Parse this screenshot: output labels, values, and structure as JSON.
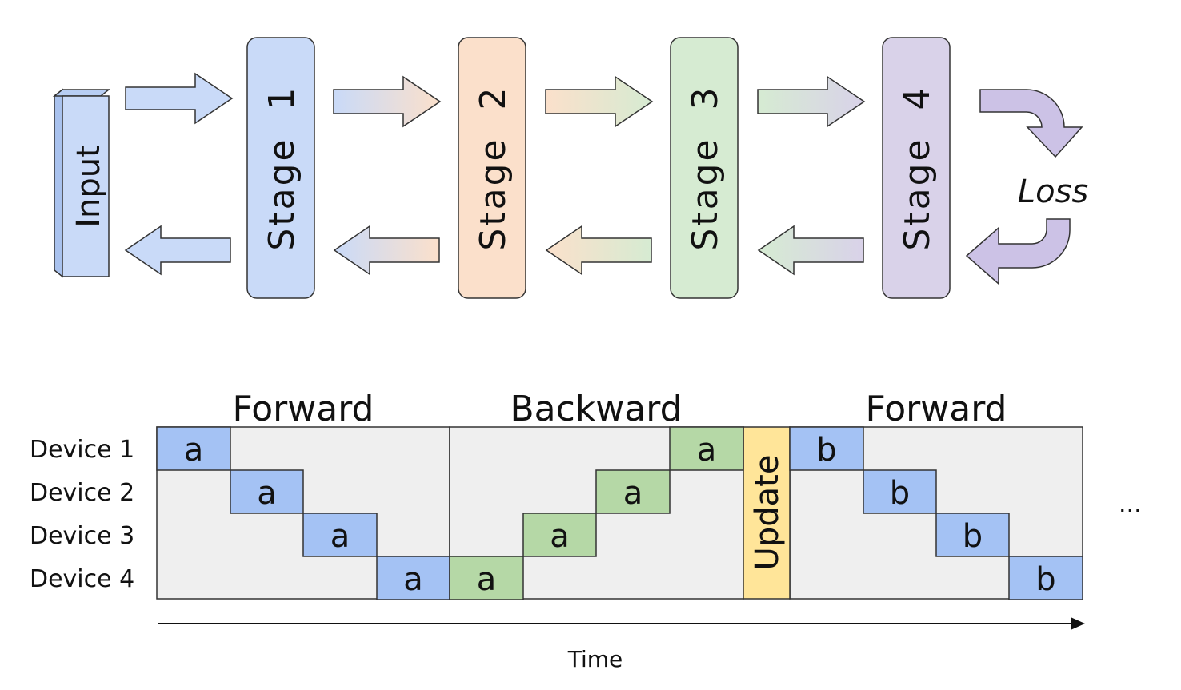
{
  "pipeline": {
    "input_label": "Input",
    "loss_label": "Loss",
    "stages": [
      {
        "label": "Stage  1",
        "color": "#C9DAF8"
      },
      {
        "label": "Stage  2",
        "color": "#FBE0CB"
      },
      {
        "label": "Stage  3",
        "color": "#D6EBD2"
      },
      {
        "label": "Stage  4",
        "color": "#D9D2E9"
      }
    ],
    "colors": {
      "input": "#C9DAF8",
      "loss_arrow": "#CCC2E6",
      "forward_cell": "#A4C2F4",
      "backward_cell": "#B5D8A6",
      "update_cell": "#FFE599",
      "schedule_background": "#EFEFEF"
    }
  },
  "schedule": {
    "phase_labels": [
      "Forward",
      "Backward",
      "Forward"
    ],
    "devices": [
      "Device 1",
      "Device 2",
      "Device 3",
      "Device 4"
    ],
    "update_label": "Update",
    "axis_label": "Time",
    "ellipsis": "...",
    "cells": [
      {
        "device": 1,
        "slot": 0,
        "label": "a",
        "kind": "forward"
      },
      {
        "device": 2,
        "slot": 1,
        "label": "a",
        "kind": "forward"
      },
      {
        "device": 3,
        "slot": 2,
        "label": "a",
        "kind": "forward"
      },
      {
        "device": 4,
        "slot": 3,
        "label": "a",
        "kind": "forward"
      },
      {
        "device": 4,
        "slot": 4,
        "label": "a",
        "kind": "backward"
      },
      {
        "device": 3,
        "slot": 5,
        "label": "a",
        "kind": "backward"
      },
      {
        "device": 2,
        "slot": 6,
        "label": "a",
        "kind": "backward"
      },
      {
        "device": 1,
        "slot": 7,
        "label": "a",
        "kind": "backward"
      },
      {
        "device": 1,
        "slot": 9,
        "label": "b",
        "kind": "forward"
      },
      {
        "device": 2,
        "slot": 10,
        "label": "b",
        "kind": "forward"
      },
      {
        "device": 3,
        "slot": 11,
        "label": "b",
        "kind": "forward"
      },
      {
        "device": 4,
        "slot": 12,
        "label": "b",
        "kind": "forward"
      }
    ]
  }
}
